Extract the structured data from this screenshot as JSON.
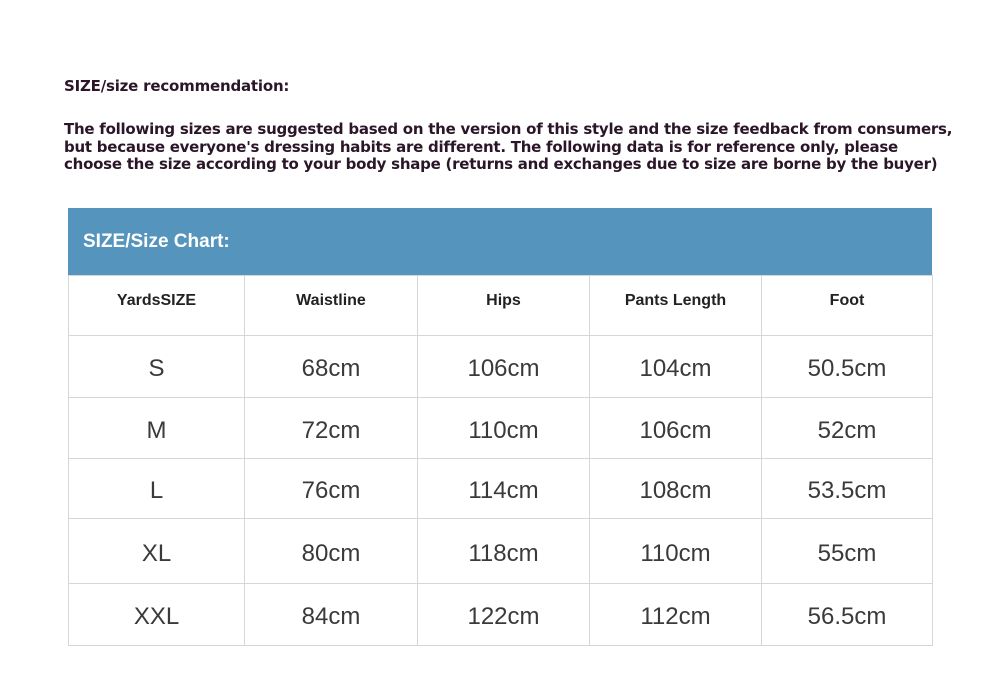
{
  "title": "SIZE/size recommendation:",
  "description": [
    "The following sizes are suggested based on the version of this style and the size feedback from consumers,",
    "but because everyone's dressing habits are different. The following data is for reference only, please",
    "choose the size according to your body shape (returns and exchanges due to size are borne by the buyer)"
  ],
  "chart": {
    "heading": "SIZE/Size Chart:",
    "header_color": "#5595bd",
    "columns": [
      "YardsSIZE",
      "Waistline",
      "Hips",
      "Pants Length",
      "Foot"
    ],
    "rows": [
      [
        "S",
        "68cm",
        "106cm",
        "104cm",
        "50.5cm"
      ],
      [
        "M",
        "72cm",
        "110cm",
        "106cm",
        "52cm"
      ],
      [
        "L",
        "76cm",
        "114cm",
        "108cm",
        "53.5cm"
      ],
      [
        "XL",
        "80cm",
        "118cm",
        "110cm",
        "55cm"
      ],
      [
        "XXL",
        "84cm",
        "122cm",
        "112cm",
        "56.5cm"
      ]
    ]
  }
}
